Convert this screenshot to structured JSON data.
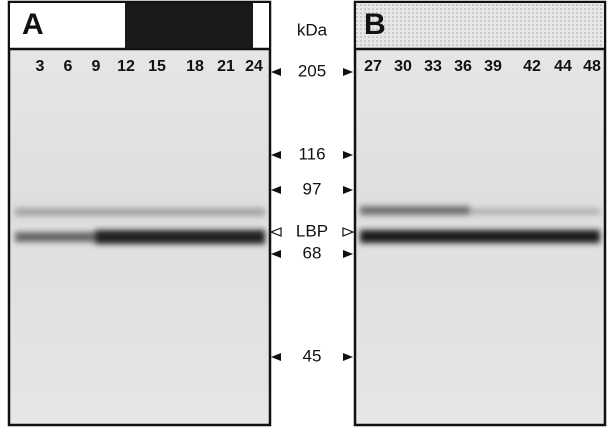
{
  "panels": [
    {
      "label": "A",
      "lanes": [
        "3",
        "6",
        "9",
        "12",
        "15",
        "18",
        "21",
        "24"
      ]
    },
    {
      "label": "B",
      "lanes": [
        "27",
        "30",
        "33",
        "36",
        "39",
        "42",
        "44",
        "48"
      ]
    }
  ],
  "unit": "kDa",
  "markers": [
    "205",
    "116",
    "97",
    "LBP",
    "68",
    "45"
  ]
}
